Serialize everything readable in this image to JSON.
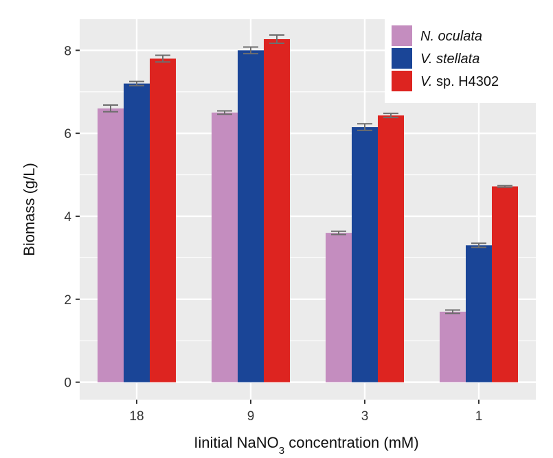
{
  "chart_data": {
    "type": "bar",
    "categories": [
      "18",
      "9",
      "3",
      "1"
    ],
    "series": [
      {
        "name": "N. oculata",
        "name_style": "italic",
        "color": "#c48dbf",
        "values": [
          6.6,
          6.5,
          3.6,
          1.7
        ],
        "errors": [
          0.08,
          0.04,
          0.04,
          0.04
        ]
      },
      {
        "name": "V. stellata",
        "name_style": "italic",
        "color": "#1a4597",
        "values": [
          7.2,
          8.0,
          6.15,
          3.3
        ],
        "errors": [
          0.05,
          0.08,
          0.08,
          0.05
        ]
      },
      {
        "name_italic": "V.",
        "name_rest": " sp. H4302",
        "name": "V. sp. H4302",
        "color": "#dd2420",
        "values": [
          7.8,
          8.27,
          6.43,
          4.72
        ],
        "errors": [
          0.08,
          0.1,
          0.05,
          0.02
        ]
      }
    ],
    "xlabel_main": "Iinitial NaNO",
    "xlabel_sub": "3",
    "xlabel_tail": " concentration (mM)",
    "ylabel": "Biomass (g/L)",
    "yticks": [
      0,
      2,
      4,
      6,
      8
    ],
    "ylim": [
      -0.42,
      8.75
    ],
    "grid": true,
    "legend_position": "top-right",
    "colors": {
      "panel": "#ebebeb",
      "grid": "#ffffff",
      "errorbar": "#6e6e6e"
    }
  }
}
